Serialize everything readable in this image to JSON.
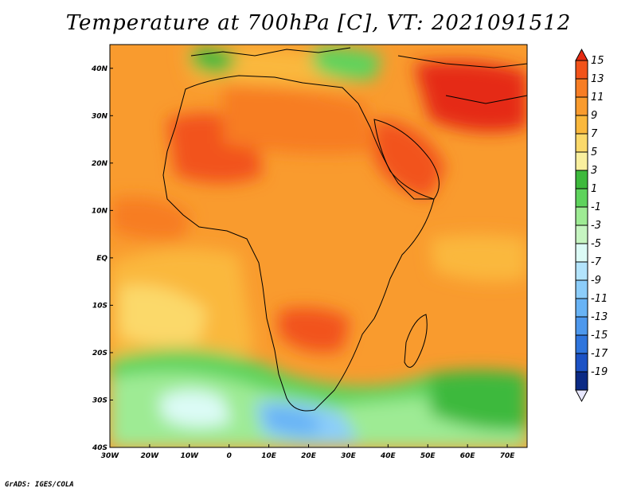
{
  "title": "Temperature at 700hPa [C], VT: 2021091512",
  "footer": "GrADS: IGES/COLA",
  "map": {
    "lon_ticks": [
      "30W",
      "20W",
      "10W",
      "0",
      "10E",
      "20E",
      "30E",
      "40E",
      "50E",
      "60E",
      "70E"
    ],
    "lat_ticks": [
      "40N",
      "30N",
      "20N",
      "10N",
      "EQ",
      "10S",
      "20S",
      "30S",
      "40S"
    ],
    "extent": {
      "lon": [
        -30,
        75
      ],
      "lat": [
        -40,
        45
      ]
    }
  },
  "colorbar": {
    "labels": [
      "15",
      "13",
      "11",
      "9",
      "7",
      "5",
      "3",
      "1",
      "-1",
      "-3",
      "-5",
      "-7",
      "-9",
      "-11",
      "-13",
      "-15",
      "-17",
      "-19"
    ],
    "colors": [
      "#e52a12",
      "#f2531a",
      "#f77d24",
      "#f99b2e",
      "#fab83c",
      "#fbd96a",
      "#f9ef9e",
      "#3db93c",
      "#5ed35c",
      "#9eeb94",
      "#c6f5c1",
      "#dcfbf6",
      "#b3e4fc",
      "#8ccdfa",
      "#68b3f5",
      "#4d98ed",
      "#2f75dd",
      "#1c52c5",
      "#0b2a85"
    ]
  }
}
